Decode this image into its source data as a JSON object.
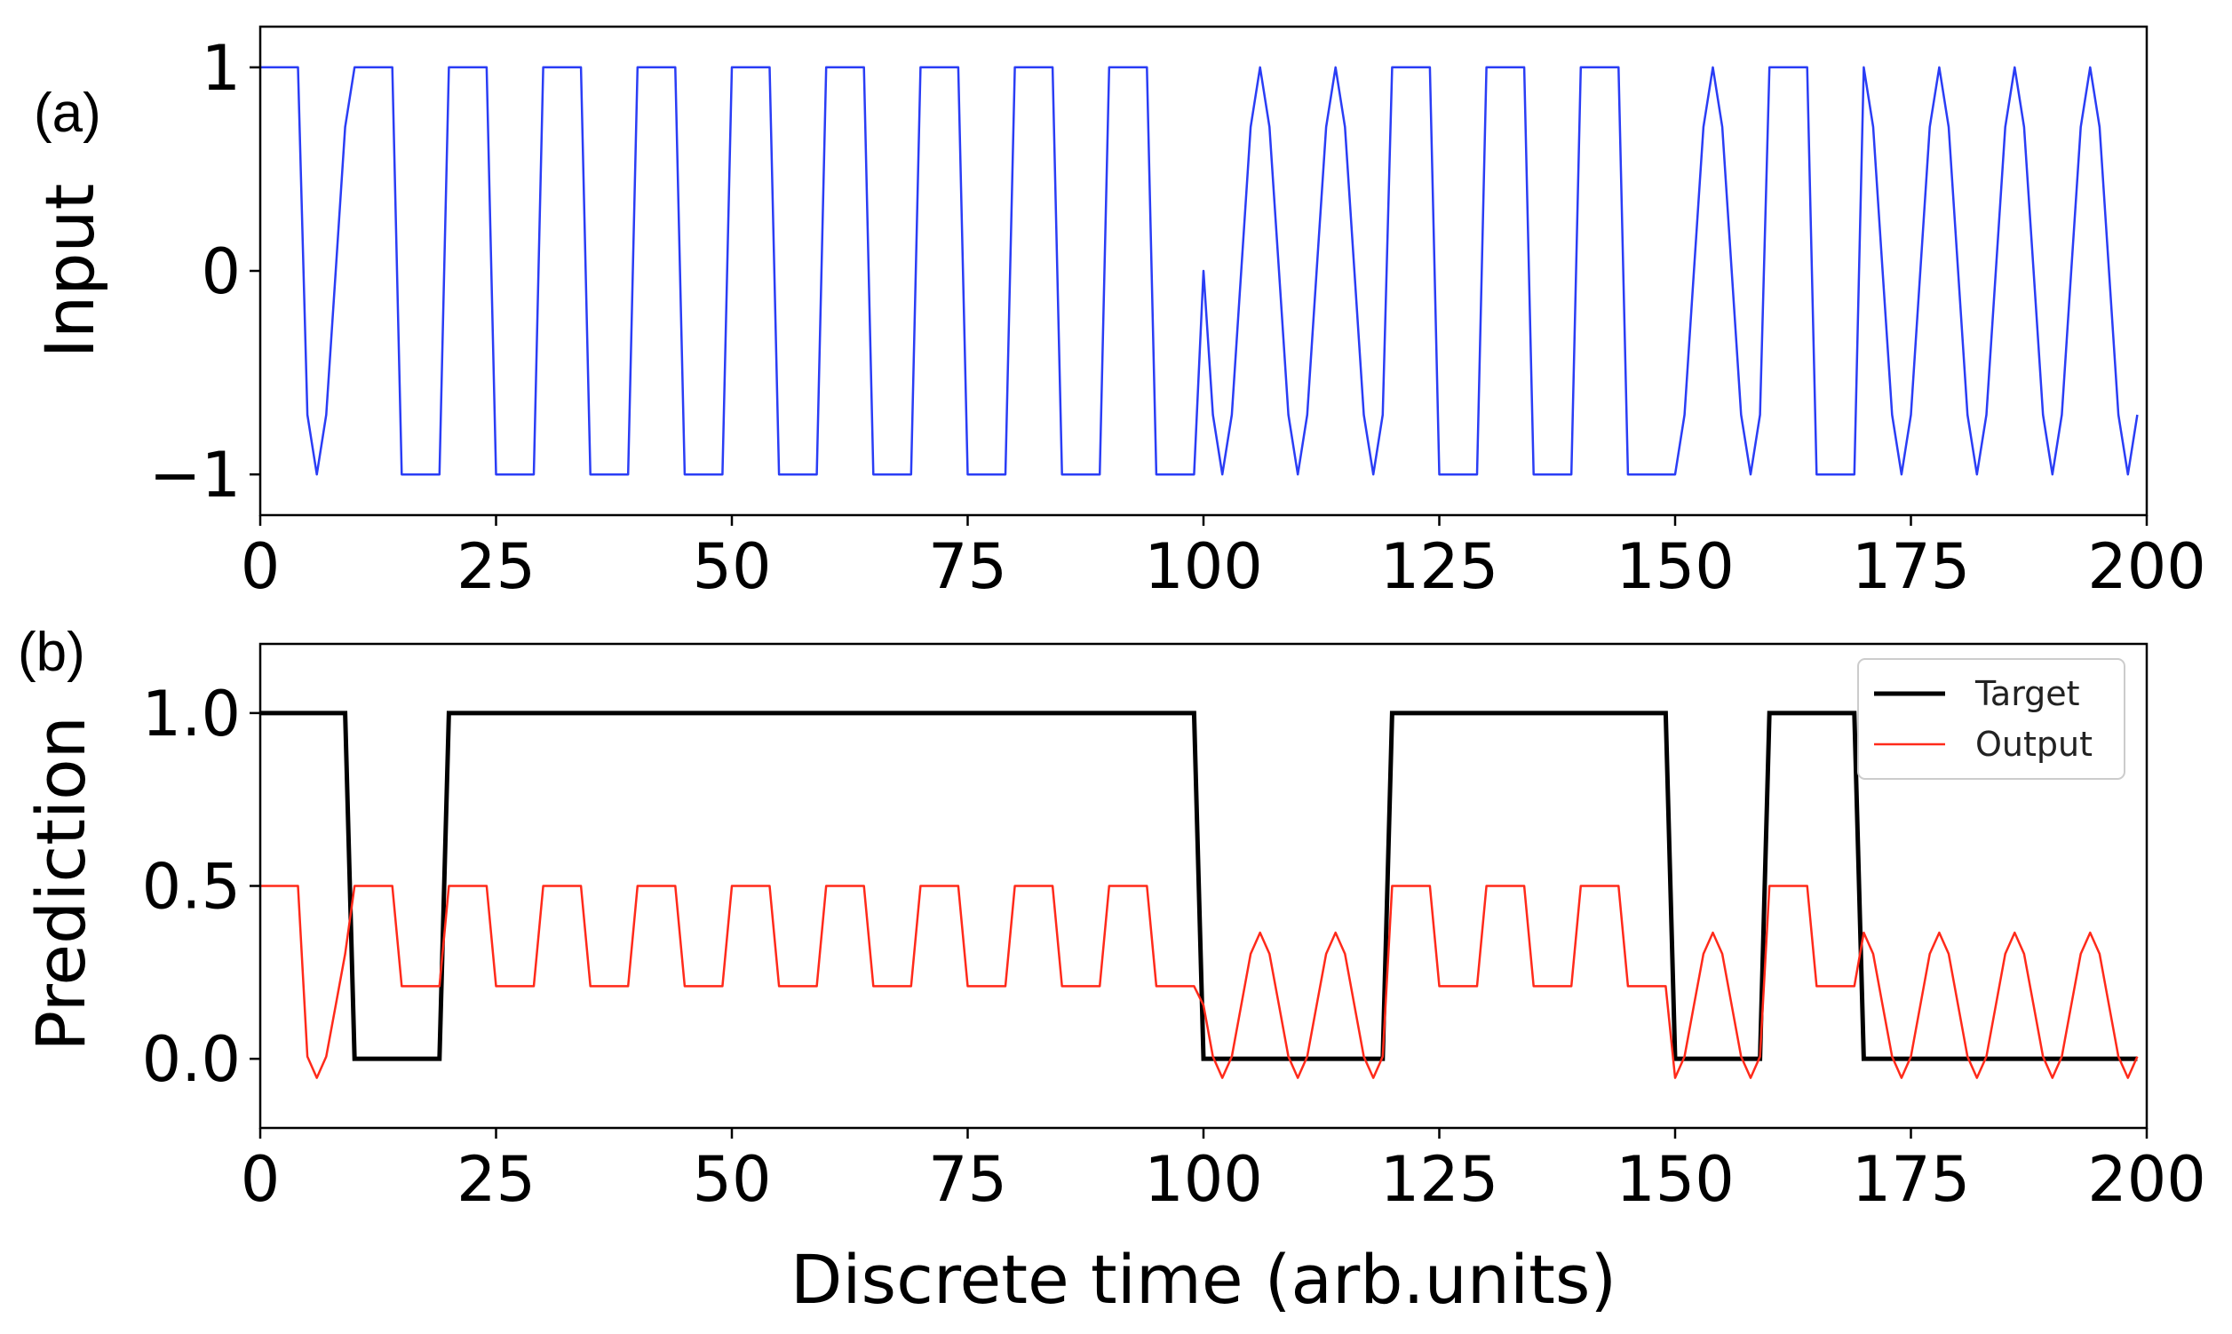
{
  "chart_data": [
    {
      "panel_label": "(a)",
      "type": "line",
      "ylabel": "Input",
      "xlabel": "",
      "xlim": [
        0,
        200
      ],
      "ylim": [
        -1.2,
        1.2
      ],
      "xticks": [
        0,
        25,
        50,
        75,
        100,
        125,
        150,
        175,
        200
      ],
      "xtick_labels": [
        "0",
        "25",
        "50",
        "75",
        "100",
        "125",
        "150",
        "175",
        "200"
      ],
      "yticks": [
        -1,
        0,
        1
      ],
      "ytick_labels": [
        "−1",
        "0",
        "1"
      ],
      "grid": false,
      "legend": null,
      "signal": {
        "description_of_segments": "20 segments of 10 steps each; 'square' = 1 for 5 steps then -1 for 5 steps, 'sine' = sin(2*pi*t/8) sampled at integers",
        "segments": [
          "sine",
          "square",
          "square",
          "square",
          "square",
          "square",
          "square",
          "square",
          "square",
          "square",
          "sine",
          "sine",
          "square",
          "square",
          "square",
          "sine",
          "square",
          "sine",
          "sine",
          "sine"
        ],
        "first_segment_override": "first 5 steps = 1, then sine",
        "color": "#2a3df5"
      },
      "series": [
        {
          "name": "",
          "color": "#2a3df5"
        }
      ]
    },
    {
      "panel_label": "(b)",
      "type": "line",
      "ylabel": "Prediction",
      "xlabel": "Discrete time (arb.units)",
      "xlim": [
        0,
        200
      ],
      "ylim": [
        -0.2,
        1.2
      ],
      "xticks": [
        0,
        25,
        50,
        75,
        100,
        125,
        150,
        175,
        200
      ],
      "xtick_labels": [
        "0",
        "25",
        "50",
        "75",
        "100",
        "125",
        "150",
        "175",
        "200"
      ],
      "yticks": [
        0.0,
        0.5,
        1.0
      ],
      "ytick_labels": [
        "0.0",
        "0.5",
        "1.0"
      ],
      "grid": false,
      "legend": {
        "placement": "top-right",
        "entries": [
          "Target",
          "Output"
        ]
      },
      "series": [
        {
          "name": "Target",
          "color": "#000000",
          "segment_values": [
            1,
            0,
            1,
            1,
            1,
            1,
            1,
            1,
            1,
            1,
            0,
            0,
            1,
            1,
            1,
            0,
            1,
            0,
            0,
            0
          ]
        },
        {
          "name": "Output",
          "color": "#ff2a1a",
          "mapping": "square: 0.5 (high) / 0.21 (low); sine: 0.155 + 0.21*sin(2*pi*t/8)"
        }
      ]
    }
  ]
}
